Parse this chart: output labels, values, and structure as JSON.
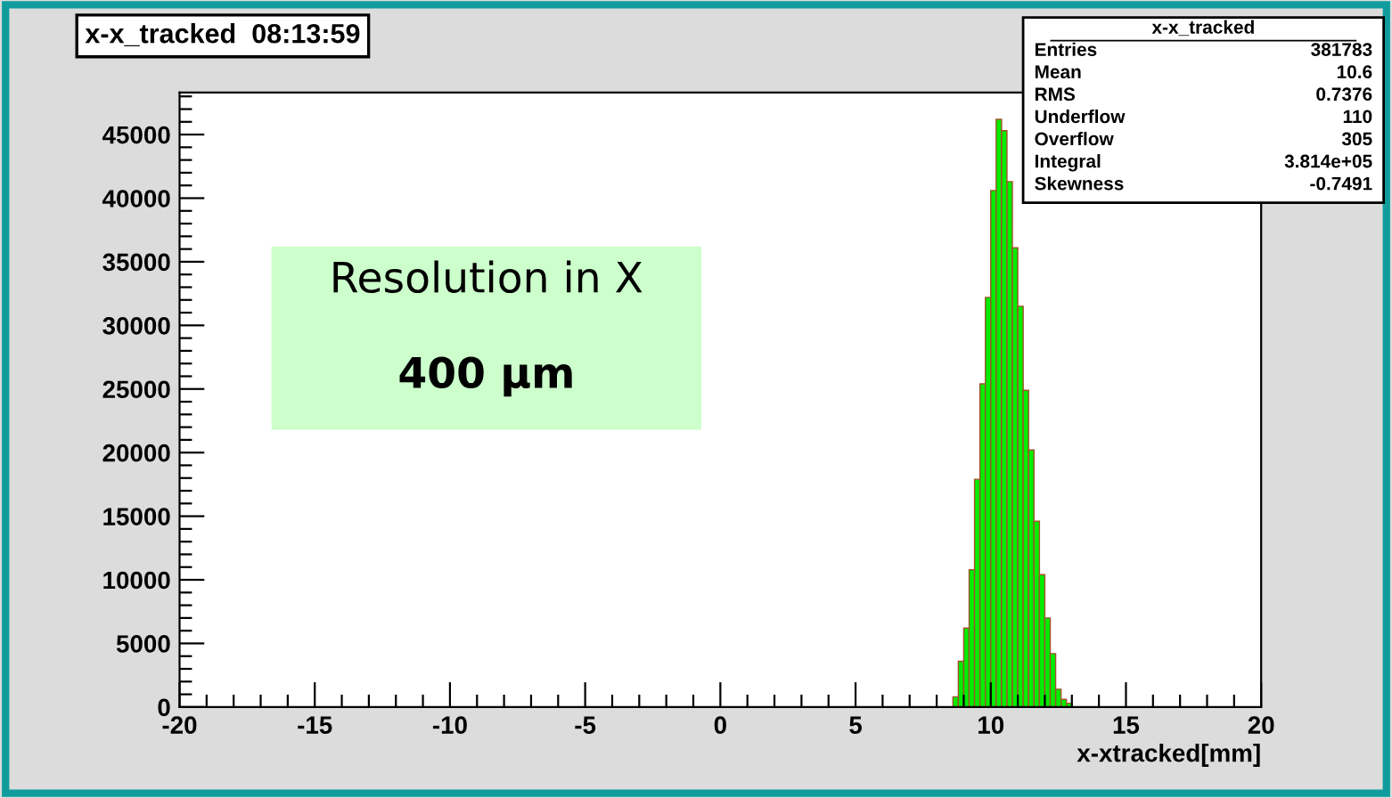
{
  "chart_data": {
    "type": "histogram",
    "title": "x-x_tracked  08:13:59",
    "xlabel": "x-xtracked[mm]",
    "bins": [
      8.6,
      8.8,
      9.0,
      9.2,
      9.4,
      9.6,
      9.8,
      10.0,
      10.2,
      10.4,
      10.6,
      10.8,
      11.0,
      11.2,
      11.4,
      11.6,
      11.8,
      12.0,
      12.2,
      12.4,
      12.6,
      12.8,
      13.0
    ],
    "values": [
      800,
      3600,
      6200,
      10800,
      17900,
      25400,
      32200,
      40600,
      46200,
      45300,
      41300,
      36100,
      31500,
      24900,
      20200,
      14600,
      10400,
      7000,
      4200,
      1400,
      600,
      300
    ],
    "color": "#00ee00",
    "xlim": [
      -20,
      20
    ],
    "xticks": [
      -20,
      -15,
      -10,
      -5,
      0,
      5,
      10,
      15,
      20
    ],
    "ylim": [
      0,
      48300
    ],
    "yticks": [
      0,
      5000,
      10000,
      15000,
      20000,
      25000,
      30000,
      35000,
      40000,
      45000
    ],
    "grid": false,
    "legend": false,
    "annotations": [
      "Resolution in X",
      "400 μm",
      "x-x_tracked",
      "Entries 381783",
      "Mean 10.6",
      "RMS 0.7376",
      "Underflow 110",
      "Overflow 305",
      "Integral 3.814e+05",
      "Skewness -0.7491"
    ]
  }
}
